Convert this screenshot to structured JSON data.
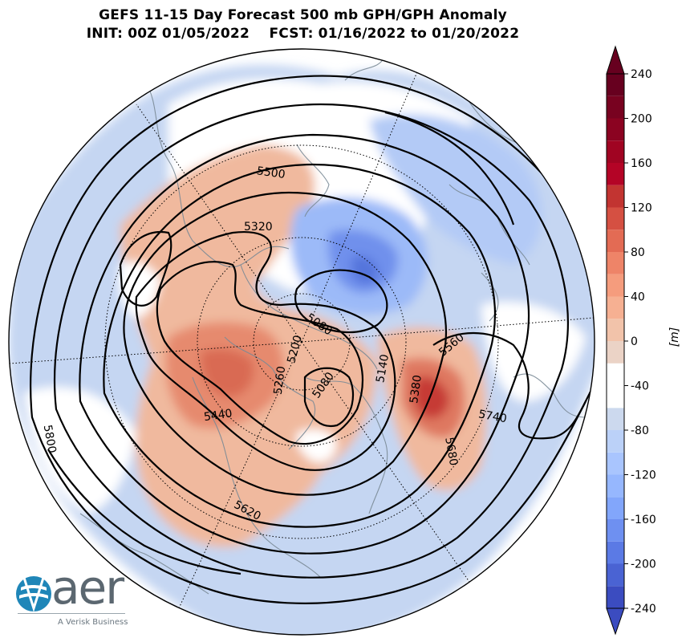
{
  "title": {
    "line1": "GEFS 11-15 Day Forecast 500 mb GPH/GPH Anomaly",
    "line2": "INIT: 00Z 01/05/2022    FCST: 01/16/2022 to 01/20/2022"
  },
  "map": {
    "projection": "north polar stereographic",
    "contour_labels": [
      "5500",
      "5320",
      "5080",
      "5200",
      "5080",
      "5140",
      "5380",
      "5560",
      "5260",
      "5440",
      "5740",
      "5680",
      "5620",
      "5800"
    ],
    "colors": {
      "contour": "#000000",
      "coastline": "#7a8a96",
      "graticule": "#000000"
    }
  },
  "colorbar": {
    "unit_label": "[m]",
    "tick_labels": [
      "240",
      "200",
      "160",
      "120",
      "80",
      "40",
      "0",
      "-40",
      "-80",
      "-120",
      "-160",
      "-200",
      "-240"
    ],
    "min": -240,
    "max": 240,
    "step": 20,
    "colors": [
      "#3b4cc0",
      "#4a63d3",
      "#5b7ae5",
      "#6e90f1",
      "#82a6fb",
      "#96b7fe",
      "#a9c5fe",
      "#bbd1f8",
      "#ccd9ee",
      "#ffffff",
      "#ffffff",
      "#ebd3c6",
      "#f2c3aa",
      "#f6b092",
      "#f59c7d",
      "#ee8468",
      "#e36b54",
      "#d55042",
      "#c23431",
      "#b40426",
      "#a00422",
      "#8b0321",
      "#780220",
      "#67001f"
    ]
  },
  "logo": {
    "wordmark": "aer",
    "tagline": "A Verisk Business"
  }
}
